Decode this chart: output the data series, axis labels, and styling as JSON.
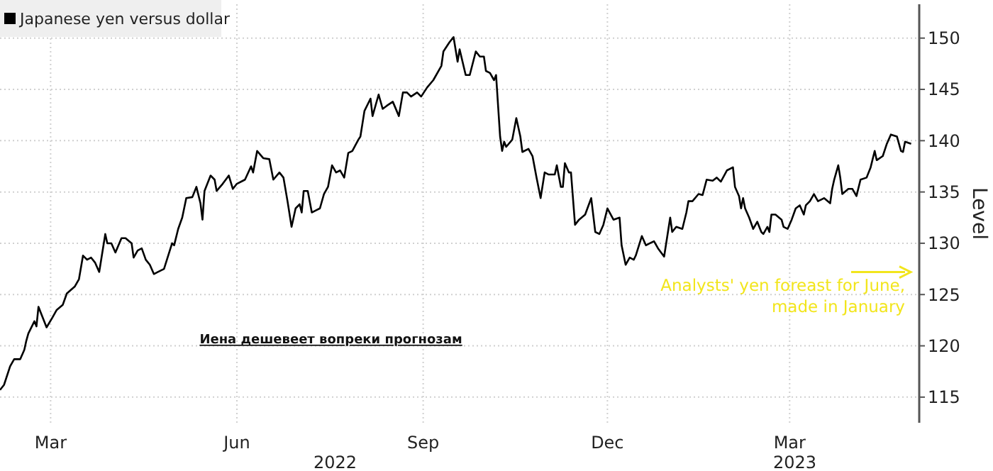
{
  "chart_data": {
    "type": "line",
    "ylabel": "Level",
    "legend": "top left",
    "grid": true,
    "marker": "none",
    "line_style": "solid",
    "xlim": [
      "2022-02-04",
      "2023-05-04"
    ],
    "ylim": [
      112.5,
      153.3
    ],
    "xticks": [
      {
        "value": "2022-03-01",
        "label": "Mar"
      },
      {
        "value": "2022-06-01",
        "label": "Jun"
      },
      {
        "value": "2022-09-01",
        "label": "Sep"
      },
      {
        "value": "2022-12-01",
        "label": "Dec"
      },
      {
        "value": "2023-03-01",
        "label": "Mar"
      }
    ],
    "yticks": [
      115,
      120,
      125,
      130,
      135,
      140,
      145,
      150
    ],
    "annotations": [
      "2022",
      "2023",
      "Иена дешевеет вопреки прогнозам",
      "Analysts' yen foreast for June, made in January"
    ],
    "series": [
      {
        "name": "Japanese yen versus dollar",
        "color": "#000000",
        "x": [
          "2022-02-04",
          "2022-02-06",
          "2022-02-09",
          "2022-02-11",
          "2022-02-14",
          "2022-02-16",
          "2022-02-17",
          "2022-02-18",
          "2022-02-21",
          "2022-02-22",
          "2022-02-23",
          "2022-02-25",
          "2022-02-27",
          "2022-03-02",
          "2022-03-04",
          "2022-03-07",
          "2022-03-09",
          "2022-03-13",
          "2022-03-15",
          "2022-03-17",
          "2022-03-19",
          "2022-03-21",
          "2022-03-23",
          "2022-03-25",
          "2022-03-28",
          "2022-03-29",
          "2022-03-31",
          "2022-04-02",
          "2022-04-05",
          "2022-04-07",
          "2022-04-10",
          "2022-04-11",
          "2022-04-13",
          "2022-04-15",
          "2022-04-17",
          "2022-04-19",
          "2022-04-21",
          "2022-04-23",
          "2022-04-26",
          "2022-04-30",
          "2022-05-01",
          "2022-05-03",
          "2022-05-05",
          "2022-05-07",
          "2022-05-10",
          "2022-05-12",
          "2022-05-14",
          "2022-05-15",
          "2022-05-16",
          "2022-05-19",
          "2022-05-21",
          "2022-05-22",
          "2022-05-25",
          "2022-05-28",
          "2022-05-30",
          "2022-06-01",
          "2022-06-04",
          "2022-06-05",
          "2022-06-08",
          "2022-06-09",
          "2022-06-11",
          "2022-06-14",
          "2022-06-17",
          "2022-06-19",
          "2022-06-22",
          "2022-06-24",
          "2022-06-26",
          "2022-06-28",
          "2022-06-30",
          "2022-07-02",
          "2022-07-03",
          "2022-07-04",
          "2022-07-06",
          "2022-07-08",
          "2022-07-10",
          "2022-07-12",
          "2022-07-14",
          "2022-07-16",
          "2022-07-18",
          "2022-07-20",
          "2022-07-22",
          "2022-07-24",
          "2022-07-26",
          "2022-07-28",
          "2022-07-31",
          "2022-08-01",
          "2022-08-03",
          "2022-08-06",
          "2022-08-07",
          "2022-08-10",
          "2022-08-12",
          "2022-08-14",
          "2022-08-17",
          "2022-08-20",
          "2022-08-22",
          "2022-08-24",
          "2022-08-26",
          "2022-08-29",
          "2022-08-31",
          "2022-09-03",
          "2022-09-06",
          "2022-09-10",
          "2022-09-11",
          "2022-09-14",
          "2022-09-16",
          "2022-09-18",
          "2022-09-19",
          "2022-09-22",
          "2022-09-24",
          "2022-09-27",
          "2022-09-29",
          "2022-10-01",
          "2022-10-02",
          "2022-10-04",
          "2022-10-06",
          "2022-10-07",
          "2022-10-09",
          "2022-10-10",
          "2022-10-11",
          "2022-10-12",
          "2022-10-15",
          "2022-10-17",
          "2022-10-19",
          "2022-10-20",
          "2022-10-23",
          "2022-10-25",
          "2022-10-27",
          "2022-10-29",
          "2022-10-31",
          "2022-11-02",
          "2022-11-05",
          "2022-11-06",
          "2022-11-08",
          "2022-11-09",
          "2022-11-10",
          "2022-11-12",
          "2022-11-13",
          "2022-11-15",
          "2022-11-17",
          "2022-11-20",
          "2022-11-23",
          "2022-11-25",
          "2022-11-27",
          "2022-11-29",
          "2022-12-01",
          "2022-12-04",
          "2022-12-07",
          "2022-12-08",
          "2022-12-10",
          "2022-12-12",
          "2022-12-14",
          "2022-12-15",
          "2022-12-18",
          "2022-12-20",
          "2022-12-22",
          "2022-12-24",
          "2022-12-26",
          "2022-12-29",
          "2023-01-01",
          "2023-01-02",
          "2023-01-04",
          "2023-01-07",
          "2023-01-09",
          "2023-01-10",
          "2023-01-12",
          "2023-01-15",
          "2023-01-17",
          "2023-01-19",
          "2023-01-22",
          "2023-01-24",
          "2023-01-26",
          "2023-01-29",
          "2023-02-01",
          "2023-02-02",
          "2023-02-04",
          "2023-02-05",
          "2023-02-06",
          "2023-02-07",
          "2023-02-09",
          "2023-02-11",
          "2023-02-13",
          "2023-02-15",
          "2023-02-16",
          "2023-02-18",
          "2023-02-19",
          "2023-02-20",
          "2023-02-22",
          "2023-02-25",
          "2023-02-26",
          "2023-02-28",
          "2023-03-02",
          "2023-03-04",
          "2023-03-06",
          "2023-03-08",
          "2023-03-09",
          "2023-03-11",
          "2023-03-13",
          "2023-03-15",
          "2023-03-18",
          "2023-03-21",
          "2023-03-22",
          "2023-03-23",
          "2023-03-25",
          "2023-03-26",
          "2023-03-27",
          "2023-03-30",
          "2023-04-01",
          "2023-04-03",
          "2023-04-05",
          "2023-04-08",
          "2023-04-10",
          "2023-04-12",
          "2023-04-13",
          "2023-04-16",
          "2023-04-18",
          "2023-04-20",
          "2023-04-23",
          "2023-04-25",
          "2023-04-26",
          "2023-04-27",
          "2023-04-30"
        ],
        "values": [
          115.7,
          116.2,
          118.0,
          118.7,
          118.7,
          119.6,
          120.5,
          121.2,
          122.4,
          121.9,
          123.8,
          122.8,
          121.8,
          122.8,
          123.5,
          124.0,
          125.1,
          125.8,
          126.5,
          128.8,
          128.4,
          128.6,
          128.1,
          127.2,
          130.9,
          130.0,
          130.0,
          129.1,
          130.5,
          130.5,
          130.0,
          128.6,
          129.3,
          129.5,
          128.4,
          127.9,
          127.0,
          127.2,
          127.5,
          130.0,
          129.8,
          131.4,
          132.5,
          134.4,
          134.5,
          135.5,
          133.9,
          132.3,
          135.1,
          136.6,
          136.2,
          135.1,
          135.8,
          136.6,
          135.3,
          135.8,
          136.1,
          136.2,
          137.5,
          136.9,
          139.0,
          138.3,
          138.2,
          136.2,
          136.9,
          136.4,
          134.1,
          131.6,
          133.4,
          133.8,
          133.0,
          135.1,
          135.1,
          133.0,
          133.2,
          133.4,
          134.8,
          135.5,
          137.6,
          136.9,
          137.1,
          136.4,
          138.8,
          139.0,
          140.1,
          140.4,
          142.9,
          144.1,
          142.4,
          144.5,
          143.1,
          143.4,
          143.8,
          142.4,
          144.7,
          144.7,
          144.3,
          144.7,
          144.3,
          145.2,
          145.9,
          147.3,
          148.7,
          149.6,
          150.1,
          147.7,
          148.9,
          146.4,
          146.4,
          148.7,
          148.2,
          148.2,
          146.8,
          146.6,
          145.9,
          146.4,
          140.4,
          139.0,
          139.9,
          139.4,
          140.1,
          142.2,
          140.4,
          138.9,
          139.2,
          138.5,
          136.4,
          134.4,
          136.9,
          136.7,
          136.7,
          137.6,
          135.5,
          135.5,
          137.8,
          136.9,
          136.9,
          131.8,
          132.3,
          132.8,
          134.4,
          131.1,
          130.9,
          131.8,
          133.4,
          132.3,
          132.5,
          129.8,
          127.9,
          128.6,
          128.4,
          128.8,
          130.7,
          129.8,
          130.0,
          130.2,
          129.5,
          128.7,
          132.5,
          131.1,
          131.6,
          131.4,
          133.0,
          134.1,
          134.1,
          134.8,
          134.7,
          136.2,
          136.1,
          136.4,
          136.0,
          137.1,
          137.4,
          135.5,
          134.6,
          133.4,
          134.4,
          133.4,
          132.5,
          131.4,
          132.1,
          131.1,
          130.9,
          131.6,
          131.1,
          132.8,
          132.8,
          132.3,
          131.6,
          131.4,
          132.3,
          133.4,
          133.7,
          132.8,
          133.7,
          134.1,
          134.8,
          134.1,
          134.4,
          133.9,
          135.3,
          136.2,
          137.6,
          136.4,
          134.8,
          135.3,
          135.3,
          134.6,
          136.2,
          136.4,
          137.4,
          139.0,
          138.1,
          138.5,
          139.7,
          140.6,
          140.4,
          139.0,
          138.9,
          139.9,
          139.7
        ]
      }
    ]
  }
}
